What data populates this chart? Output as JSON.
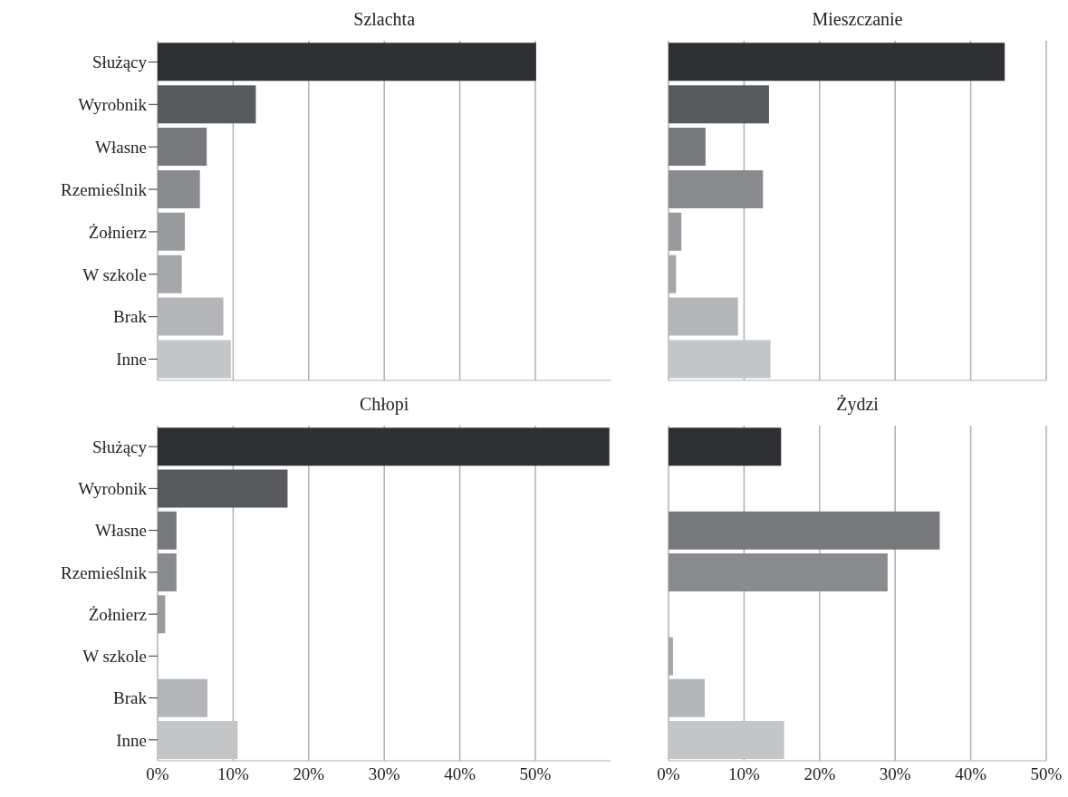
{
  "chart_data": [
    {
      "type": "bar",
      "orientation": "horizontal",
      "title": "Szlachta",
      "categories": [
        "Służący",
        "Wyrobnik",
        "Własne",
        "Rzemieślnik",
        "Żołnierz",
        "W szkole",
        "Brak",
        "Inne"
      ],
      "values": [
        50.1,
        13.0,
        6.5,
        5.6,
        3.6,
        3.2,
        8.7,
        9.7
      ],
      "colors": [
        "#2f3033",
        "#58595d",
        "#77787c",
        "#8a8b8f",
        "#999a9e",
        "#a6a7aa",
        "#b4b5b8",
        "#c4c5c7"
      ],
      "xlim": [
        0,
        60
      ],
      "xticks": [
        {
          "value": 0,
          "label": null
        },
        {
          "value": 10,
          "label": null
        },
        {
          "value": 20,
          "label": null
        },
        {
          "value": 30,
          "label": null
        },
        {
          "value": 40,
          "label": null
        },
        {
          "value": 50,
          "label": null
        }
      ],
      "grid": "x",
      "tick_labels": "y"
    },
    {
      "type": "bar",
      "orientation": "horizontal",
      "title": "Mieszczanie",
      "categories": [
        null,
        null,
        null,
        null,
        null,
        null,
        null,
        null
      ],
      "values": [
        44.5,
        13.3,
        4.9,
        12.5,
        1.7,
        1.0,
        9.2,
        13.5
      ],
      "colors": [
        "#2f3033",
        "#58595d",
        "#77787c",
        "#8a8b8f",
        "#999a9e",
        "#a6a7aa",
        "#b4b5b8",
        "#c4c5c7"
      ],
      "xlim": [
        0,
        50
      ],
      "xticks": [
        {
          "value": 0,
          "label": null
        },
        {
          "value": 10,
          "label": null
        },
        {
          "value": 20,
          "label": null
        },
        {
          "value": 30,
          "label": null
        },
        {
          "value": 40,
          "label": null
        },
        {
          "value": 50,
          "label": null
        }
      ],
      "grid": "x",
      "tick_labels": false
    },
    {
      "type": "bar",
      "orientation": "horizontal",
      "title": "Chłopi",
      "categories": [
        "Służący",
        "Wyrobnik",
        "Własne",
        "Rzemieślnik",
        "Żołnierz",
        "W szkole",
        "Brak",
        "Inne"
      ],
      "values": [
        59.8,
        17.2,
        2.5,
        2.5,
        1.0,
        0,
        6.6,
        10.6
      ],
      "colors": [
        "#2f3033",
        "#58595d",
        "#77787c",
        "#8a8b8f",
        "#999a9e",
        "#a6a7aa",
        "#b4b5b8",
        "#c4c5c7"
      ],
      "xlim": [
        0,
        60
      ],
      "xticks": [
        {
          "value": 0,
          "label": "0%"
        },
        {
          "value": 10,
          "label": "10%"
        },
        {
          "value": 20,
          "label": "20%"
        },
        {
          "value": 30,
          "label": "30%"
        },
        {
          "value": 40,
          "label": "40%"
        },
        {
          "value": 50,
          "label": "50%"
        }
      ],
      "grid": "x"
    },
    {
      "type": "bar",
      "orientation": "horizontal",
      "title": "Żydzi",
      "categories": [
        null,
        null,
        null,
        null,
        null,
        null,
        null,
        null
      ],
      "values": [
        14.9,
        0,
        35.9,
        29.0,
        0,
        0.6,
        4.8,
        15.3
      ],
      "colors": [
        "#2f3033",
        "#58595d",
        "#77787c",
        "#8a8b8f",
        "#999a9e",
        "#a6a7aa",
        "#b4b5b8",
        "#c4c5c7"
      ],
      "xlim": [
        0,
        50
      ],
      "xticks": [
        {
          "value": 0,
          "label": "0%"
        },
        {
          "value": 10,
          "label": "10%"
        },
        {
          "value": 20,
          "label": "20%"
        },
        {
          "value": 30,
          "label": "30%"
        },
        {
          "value": 40,
          "label": "40%"
        },
        {
          "value": 50,
          "label": "50%"
        }
      ],
      "grid": "x",
      "tick_labels": "x"
    }
  ]
}
